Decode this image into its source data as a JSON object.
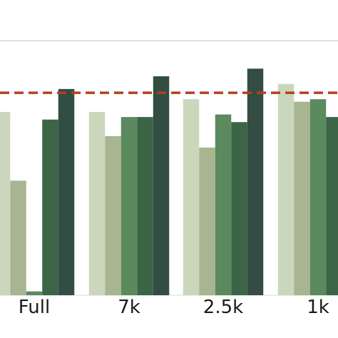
{
  "chart_data": {
    "type": "bar",
    "categories": [
      "Full",
      "7k",
      "2.5k",
      "1k"
    ],
    "series": [
      {
        "values": [
          0.72,
          0.72,
          0.77,
          0.83
        ],
        "color": "#cbd7bd"
      },
      {
        "values": [
          0.45,
          0.625,
          0.58,
          0.76
        ],
        "color": "#a8b591"
      },
      {
        "values": [
          0.015,
          0.7,
          0.71,
          0.77
        ],
        "color": "#5a8a5e"
      },
      {
        "values": [
          0.69,
          0.7,
          0.68,
          0.7
        ],
        "color": "#3c6447"
      },
      {
        "values": [
          0.81,
          0.86,
          0.89,
          null
        ],
        "color": "#334d42"
      }
    ],
    "reference_line": {
      "value": 0.795,
      "color": "#b5401d",
      "style": "dashed"
    },
    "ylim": [
      0,
      1.0
    ],
    "grid": {
      "y": [
        1.0
      ]
    },
    "title": "",
    "xlabel": "",
    "ylabel": ""
  }
}
